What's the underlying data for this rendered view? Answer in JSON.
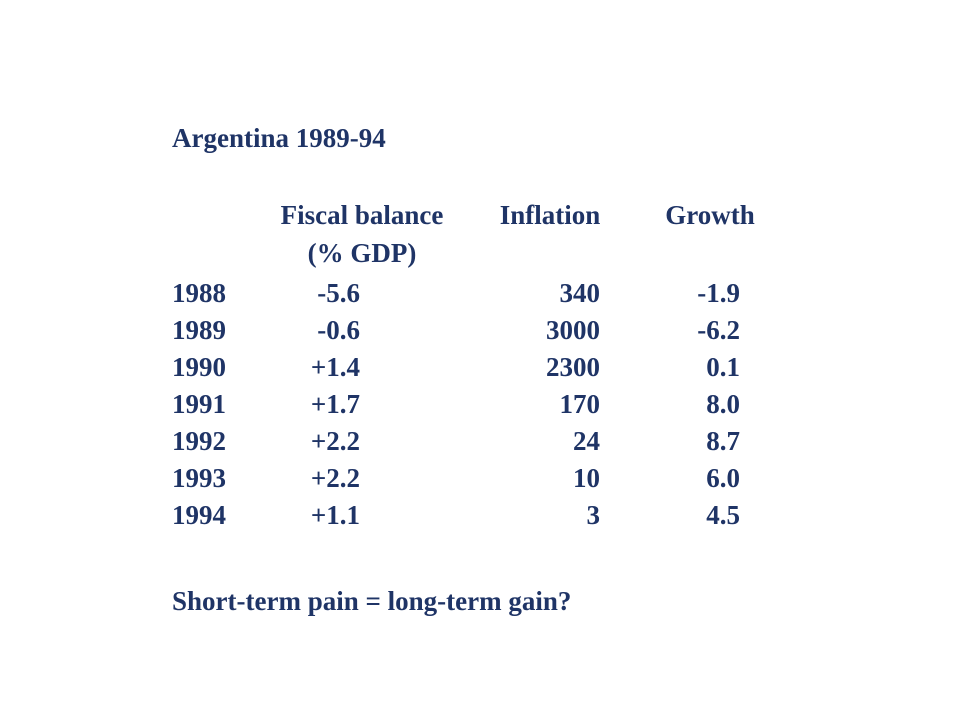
{
  "title": "Argentina 1989-94",
  "table": {
    "headers": {
      "fiscal": "Fiscal balance",
      "fiscal_sub": "(% GDP)",
      "inflation": "Inflation",
      "growth": "Growth"
    },
    "rows": [
      {
        "year": "1988",
        "fiscal": "-5.6",
        "inflation": "340",
        "growth": "-1.9"
      },
      {
        "year": "1989",
        "fiscal": "-0.6",
        "inflation": "3000",
        "growth": "-6.2"
      },
      {
        "year": "1990",
        "fiscal": "+1.4",
        "inflation": "2300",
        "growth": "0.1"
      },
      {
        "year": "1991",
        "fiscal": "+1.7",
        "inflation": "170",
        "growth": "8.0"
      },
      {
        "year": "1992",
        "fiscal": "+2.2",
        "inflation": "24",
        "growth": "8.7"
      },
      {
        "year": "1993",
        "fiscal": "+2.2",
        "inflation": "10",
        "growth": "6.0"
      },
      {
        "year": "1994",
        "fiscal": "+1.1",
        "inflation": "3",
        "growth": "4.5"
      }
    ]
  },
  "footer": "Short-term pain = long-term gain?"
}
